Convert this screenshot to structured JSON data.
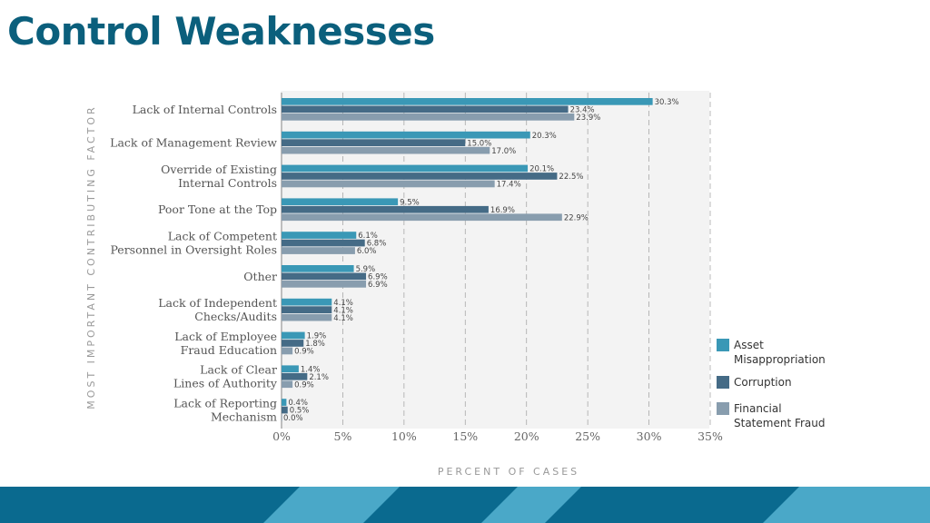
{
  "page": {
    "title": "Control Weaknesses"
  },
  "colors": {
    "asset": "#3a98b6",
    "corruption": "#456b86",
    "financial": "#889dae",
    "title": "#0b5f7c",
    "footer_dark": "#0a6a8f",
    "footer_light": "#4aa8c8"
  },
  "chart_data": {
    "type": "bar",
    "orientation": "horizontal",
    "xlabel": "PERCENT OF CASES",
    "ylabel": "MOST IMPORTANT CONTRIBUTING FACTOR",
    "xlim": [
      0,
      35
    ],
    "xticks": [
      "0%",
      "5%",
      "10%",
      "15%",
      "20%",
      "25%",
      "30%",
      "35%"
    ],
    "grid": true,
    "legend_position": "bottom-right",
    "categories": [
      [
        "Lack of Internal Controls"
      ],
      [
        "Lack of Management Review"
      ],
      [
        "Override of Existing",
        "Internal Controls"
      ],
      [
        "Poor Tone at the Top"
      ],
      [
        "Lack of Competent",
        "Personnel in Oversight Roles"
      ],
      [
        "Other"
      ],
      [
        "Lack of Independent",
        "Checks/Audits"
      ],
      [
        "Lack of Employee",
        "Fraud Education"
      ],
      [
        "Lack of Clear",
        "Lines of Authority"
      ],
      [
        "Lack of Reporting",
        "Mechanism"
      ]
    ],
    "series": [
      {
        "name": [
          "Asset",
          "Misappropriation"
        ],
        "color": "#3a98b6",
        "values": [
          30.3,
          20.3,
          20.1,
          9.5,
          6.1,
          5.9,
          4.1,
          1.9,
          1.4,
          0.4
        ],
        "labels": [
          "30.3%",
          "20.3%",
          "20.1%",
          "9.5%",
          "6.1%",
          "5.9%",
          "4.1%",
          "1.9%",
          "1.4%",
          "0.4%"
        ]
      },
      {
        "name": [
          "Corruption"
        ],
        "color": "#456b86",
        "values": [
          23.4,
          15.0,
          22.5,
          16.9,
          6.8,
          6.9,
          4.1,
          1.8,
          2.1,
          0.5
        ],
        "labels": [
          "23.4%",
          "15.0%",
          "22.5%",
          "16.9%",
          "6.8%",
          "6.9%",
          "4.1%",
          "1.8%",
          "2.1%",
          "0.5%"
        ]
      },
      {
        "name": [
          "Financial",
          "Statement Fraud"
        ],
        "color": "#889dae",
        "values": [
          23.9,
          17.0,
          17.4,
          22.9,
          6.0,
          6.9,
          4.1,
          0.9,
          0.9,
          0.0
        ],
        "labels": [
          "23.9%",
          "17.0%",
          "17.4%",
          "22.9%",
          "6.0%",
          "6.9%",
          "4.1%",
          "0.9%",
          "0.9%",
          "0.0%"
        ]
      }
    ]
  }
}
